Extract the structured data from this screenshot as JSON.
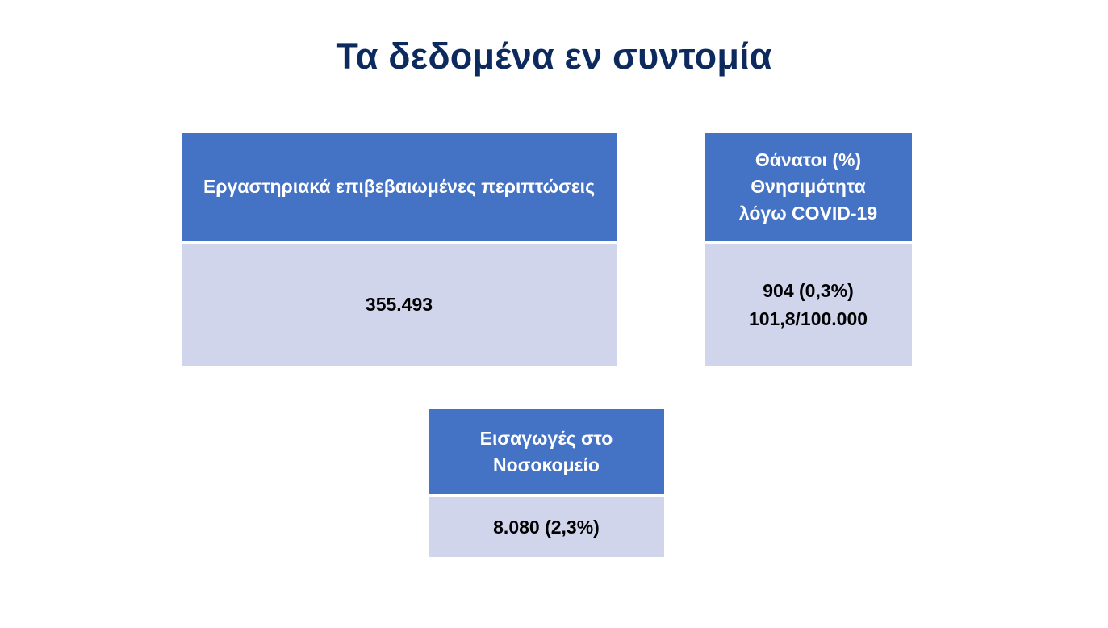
{
  "title": "Τα δεδομένα εν συντομία",
  "cards": {
    "cases": {
      "header": "Εργαστηριακά επιβεβαιωμένες περιπτώσεις",
      "value": "355.493"
    },
    "deaths": {
      "header_lines": [
        "Θάνατοι (%)",
        "Θνησιμότητα",
        "λόγω COVID-19"
      ],
      "value_lines": [
        "904 (0,3%)",
        "101,8/100.000"
      ]
    },
    "hospital": {
      "header_lines": [
        "Εισαγωγές στο",
        "Νοσοκομείο"
      ],
      "value": "8.080 (2,3%)"
    }
  },
  "colors": {
    "title": "#0d2a5e",
    "header_bg": "#4472c4",
    "body_bg": "#d0d5eb"
  }
}
